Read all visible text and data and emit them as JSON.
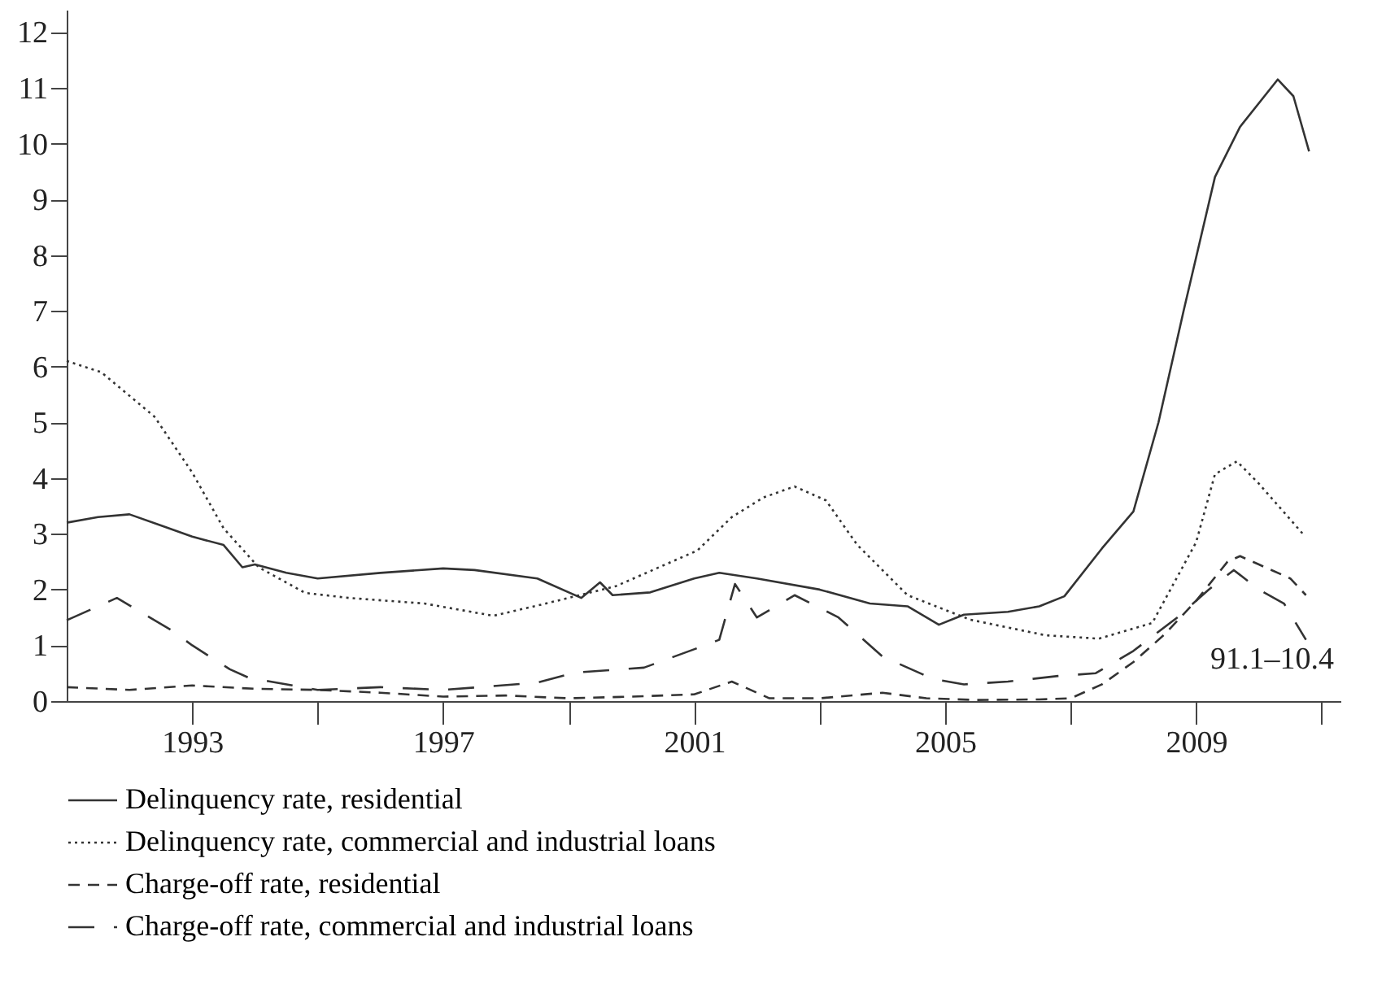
{
  "chart_data": {
    "type": "line",
    "annotations": [
      "91.1–10.4"
    ],
    "xlim": [
      1991,
      2011.3
    ],
    "xticks": [
      1993,
      {
        "value": 1995,
        "label": null
      },
      1997,
      {
        "value": 1999,
        "label": null
      },
      2001,
      {
        "value": 2003,
        "label": null
      },
      2005,
      {
        "value": 2007,
        "label": null
      },
      2009,
      {
        "value": 2011,
        "label": null
      }
    ],
    "ylim": [
      0,
      12.4
    ],
    "yticks": [
      0,
      1,
      2,
      3,
      4,
      5,
      6,
      7,
      8,
      9,
      10,
      11,
      12
    ],
    "grid": false,
    "legend": "bottom",
    "series": [
      {
        "name": "Delinquency rate, residential",
        "color": "#333333",
        "line_style": "solid",
        "x": [
          1991,
          1991.5,
          1992,
          1992.5,
          1993,
          1993.5,
          1993.8,
          1994,
          1994.5,
          1995,
          1996,
          1997,
          1997.5,
          1998.5,
          1999.2,
          1999.5,
          1999.7,
          2000.3,
          2001,
          2001.4,
          2002,
          2003,
          2003.8,
          2004.4,
          2004.9,
          2005.3,
          2006,
          2006.5,
          2006.9,
          2007.5,
          2008,
          2008.4,
          2008.8,
          2009.3,
          2009.7,
          2010.3,
          2010.55,
          2010.8
        ],
        "values": [
          3.2,
          3.3,
          3.35,
          3.15,
          2.95,
          2.8,
          2.4,
          2.45,
          2.3,
          2.2,
          2.3,
          2.38,
          2.35,
          2.2,
          1.85,
          2.13,
          1.9,
          1.95,
          2.2,
          2.3,
          2.2,
          2.0,
          1.75,
          1.7,
          1.37,
          1.55,
          1.6,
          1.7,
          1.88,
          2.74,
          3.4,
          5.0,
          7.0,
          9.4,
          10.3,
          11.15,
          10.85,
          9.86
        ]
      },
      {
        "name": "Delinquency rate, commercial and industrial loans",
        "color": "#333333",
        "line_style": "dotted",
        "x": [
          1991,
          1991.55,
          1992.4,
          1993,
          1993.5,
          1994.06,
          1994.8,
          1995.5,
          1996.7,
          1997.8,
          1998.6,
          1999.75,
          2001.05,
          2001.6,
          2002.1,
          2002.6,
          2003.1,
          2003.6,
          2004.4,
          2005.4,
          2006.6,
          2007.45,
          2008.3,
          2009,
          2009.3,
          2009.65,
          2010,
          2010.7
        ],
        "values": [
          6.1,
          5.9,
          5.1,
          4.1,
          3.1,
          2.4,
          1.94,
          1.85,
          1.75,
          1.53,
          1.74,
          2.06,
          2.7,
          3.3,
          3.65,
          3.85,
          3.6,
          2.8,
          1.9,
          1.46,
          1.18,
          1.12,
          1.4,
          2.85,
          4.07,
          4.3,
          3.9,
          3.0
        ]
      },
      {
        "name": "Charge-off rate, residential",
        "color": "#333333",
        "line_style": "dashed",
        "x": [
          1991,
          1992,
          1993,
          1994,
          1995,
          1996,
          1997,
          1998,
          1999,
          2000,
          2001,
          2001.6,
          2002.2,
          2003,
          2004,
          2004.7,
          2005.5,
          2006.5,
          2007,
          2007.5,
          2008,
          2008.5,
          2009,
          2009.5,
          2009.7,
          2010,
          2010.5,
          2010.75
        ],
        "values": [
          0.25,
          0.2,
          0.28,
          0.22,
          0.2,
          0.15,
          0.08,
          0.1,
          0.05,
          0.08,
          0.12,
          0.35,
          0.05,
          0.05,
          0.15,
          0.05,
          0.02,
          0.03,
          0.05,
          0.3,
          0.7,
          1.2,
          1.8,
          2.5,
          2.6,
          2.45,
          2.2,
          1.9
        ]
      },
      {
        "name": "Charge-off rate, commercial and industrial loans",
        "color": "#333333",
        "line_style": "dashed",
        "x": [
          1991,
          1991.5,
          1991.8,
          1992.7,
          1993,
          1993.6,
          1993.9,
          1995,
          1996,
          1997,
          1998.5,
          1999.1,
          2000.2,
          2001.05,
          2001.4,
          2001.65,
          2002,
          2002.6,
          2003.3,
          2004,
          2004.8,
          2005.3,
          2006,
          2006.8,
          2007.4,
          2008,
          2008.7,
          2009.2,
          2009.6,
          2010,
          2010.4,
          2010.75
        ],
        "values": [
          1.45,
          1.7,
          1.85,
          1.25,
          1.0,
          0.57,
          0.42,
          0.2,
          0.25,
          0.2,
          0.33,
          0.51,
          0.6,
          0.95,
          1.1,
          2.1,
          1.5,
          1.9,
          1.5,
          0.8,
          0.4,
          0.3,
          0.35,
          0.45,
          0.5,
          0.9,
          1.5,
          2.0,
          2.35,
          2.0,
          1.75,
          1.1
        ]
      }
    ]
  }
}
